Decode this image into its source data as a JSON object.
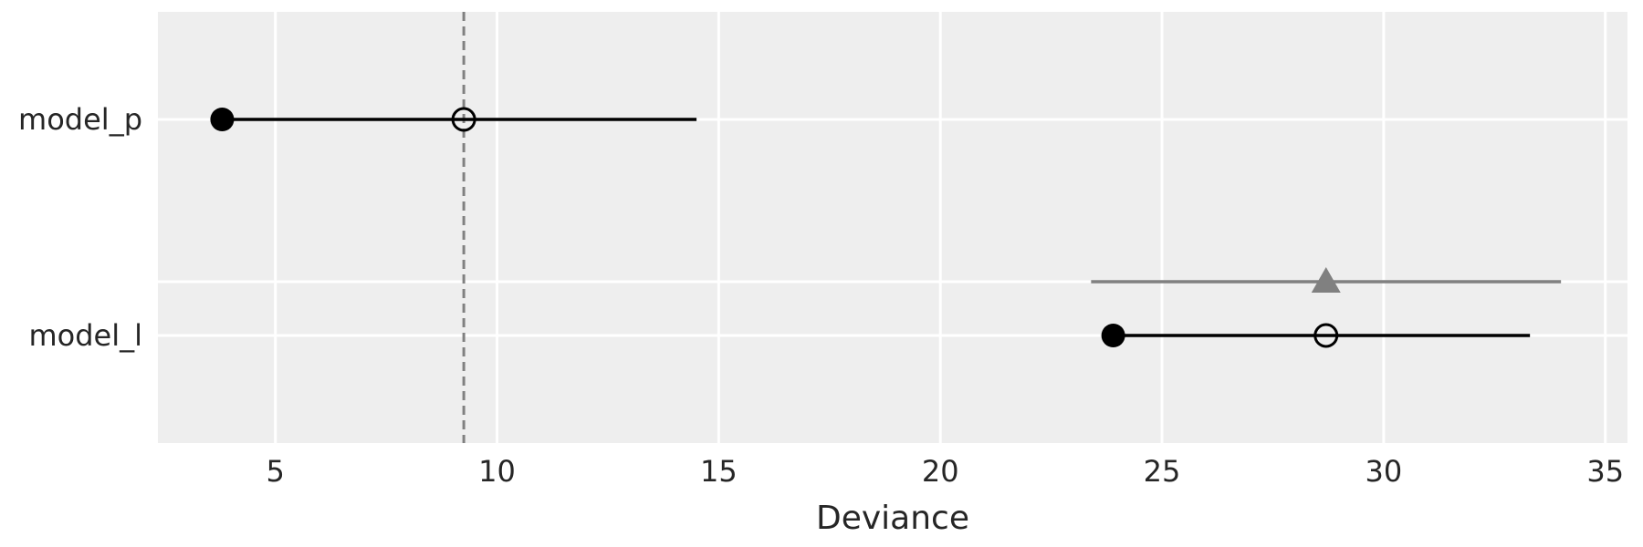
{
  "chart_data": {
    "type": "scatter",
    "title": "",
    "xlabel": "Deviance",
    "ylabel": "",
    "xlim": [
      2.35,
      35.5
    ],
    "xticks": [
      5,
      10,
      15,
      20,
      25,
      30,
      35
    ],
    "grid": true,
    "legend": "none",
    "reference_line": {
      "x": 9.25,
      "style": "dashed",
      "color": "#808080"
    },
    "categories": [
      "model_p",
      "model_l"
    ],
    "in_sample_deviance": [
      3.8,
      23.9
    ],
    "out_of_sample_deviance": [
      9.25,
      28.7
    ],
    "interval": [
      [
        3.8,
        14.5
      ],
      [
        23.9,
        33.3
      ]
    ],
    "difference": [
      {
        "category": "model_l",
        "value": 28.7,
        "interval": [
          23.4,
          34.0
        ]
      }
    ],
    "colors": {
      "background": "#eeeeee",
      "grid": "#ffffff",
      "point": "#000000",
      "difference": "#808080",
      "text": "#262626"
    }
  }
}
